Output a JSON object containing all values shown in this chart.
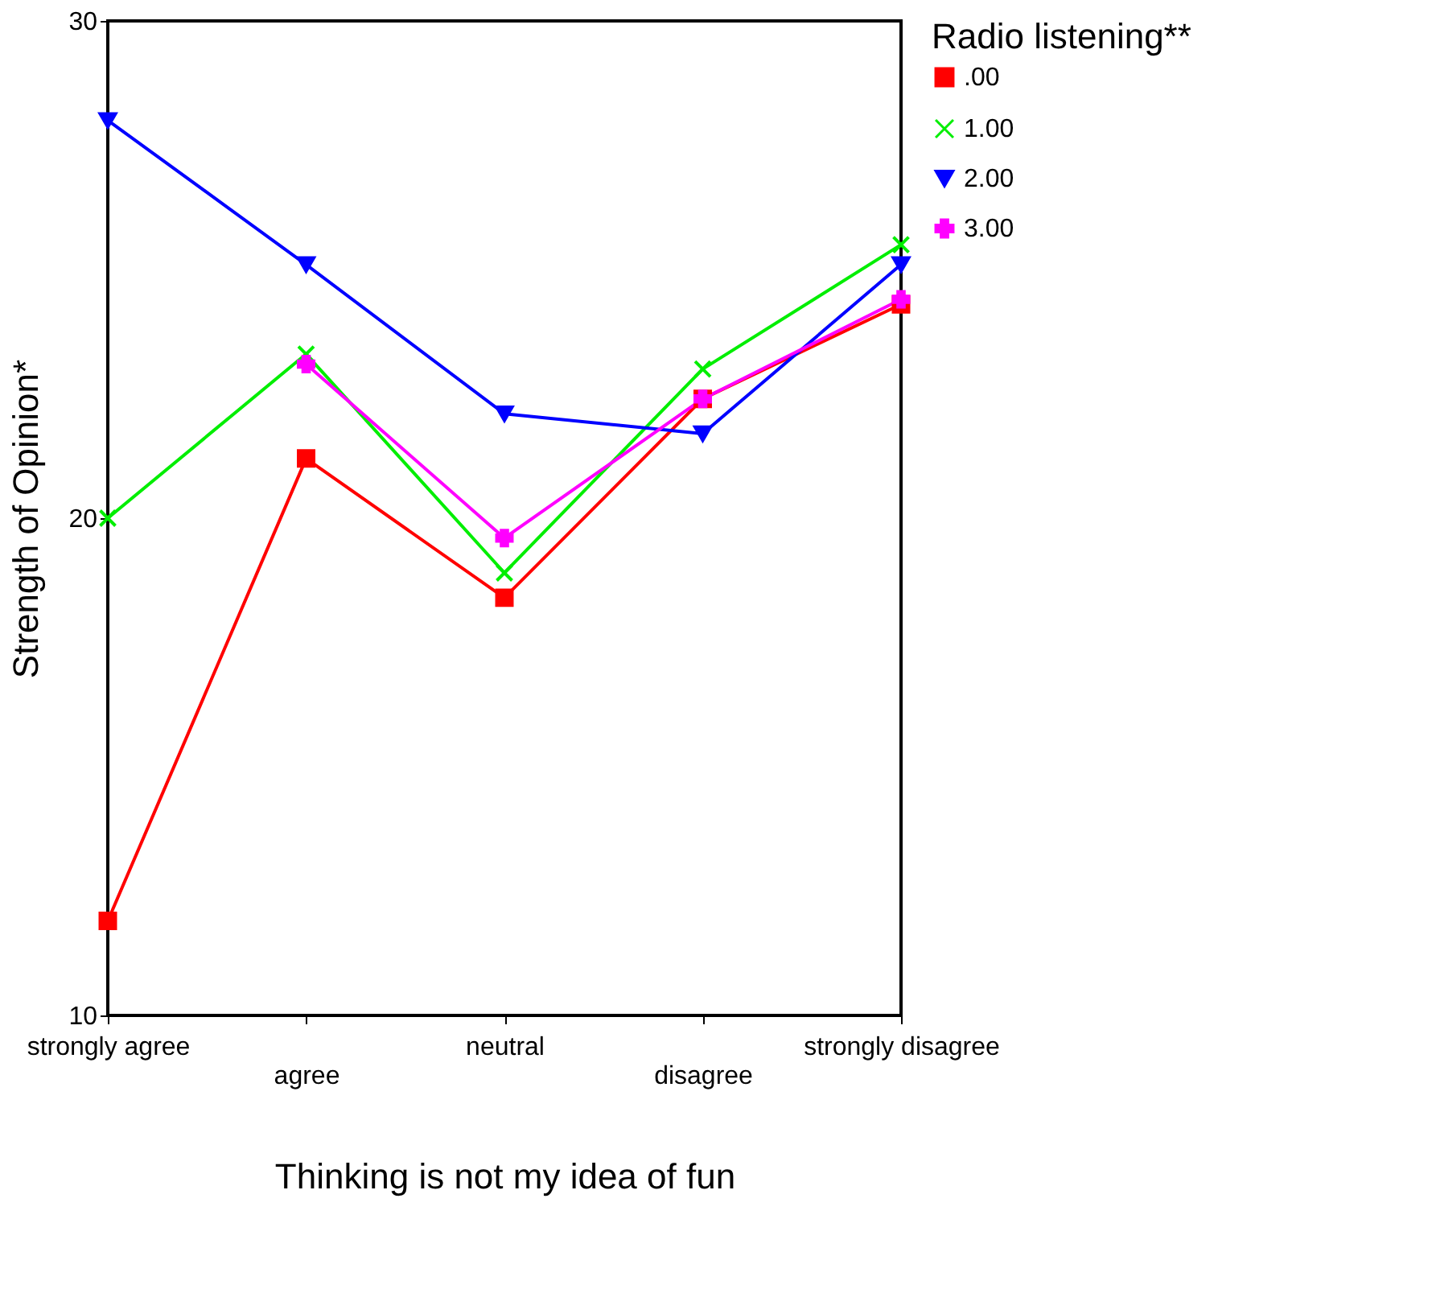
{
  "chart_data": {
    "type": "line",
    "xlabel": "Thinking is not my idea of fun",
    "ylabel": "Strength of Opinion*",
    "legend_title": "Radio listening**",
    "categories": [
      "strongly agree",
      "agree",
      "neutral",
      "disagree",
      "strongly disagree"
    ],
    "ylim": [
      10,
      30
    ],
    "yticks": [
      10,
      20,
      30
    ],
    "grid": false,
    "legend": "right",
    "series": [
      {
        "name": ".00",
        "color": "#ff0000",
        "marker": "square",
        "values": [
          11.9,
          21.2,
          18.4,
          22.4,
          24.3
        ]
      },
      {
        "name": "1.00",
        "color": "#00ee00",
        "marker": "cross",
        "values": [
          20.0,
          23.3,
          18.9,
          23.0,
          25.5
        ]
      },
      {
        "name": "2.00",
        "color": "#0000ff",
        "marker": "triangle-down",
        "values": [
          28.0,
          25.1,
          22.1,
          21.7,
          25.1
        ]
      },
      {
        "name": "3.00",
        "color": "#ff00ff",
        "marker": "plus",
        "values": [
          null,
          23.1,
          19.6,
          22.4,
          24.4
        ]
      }
    ]
  }
}
